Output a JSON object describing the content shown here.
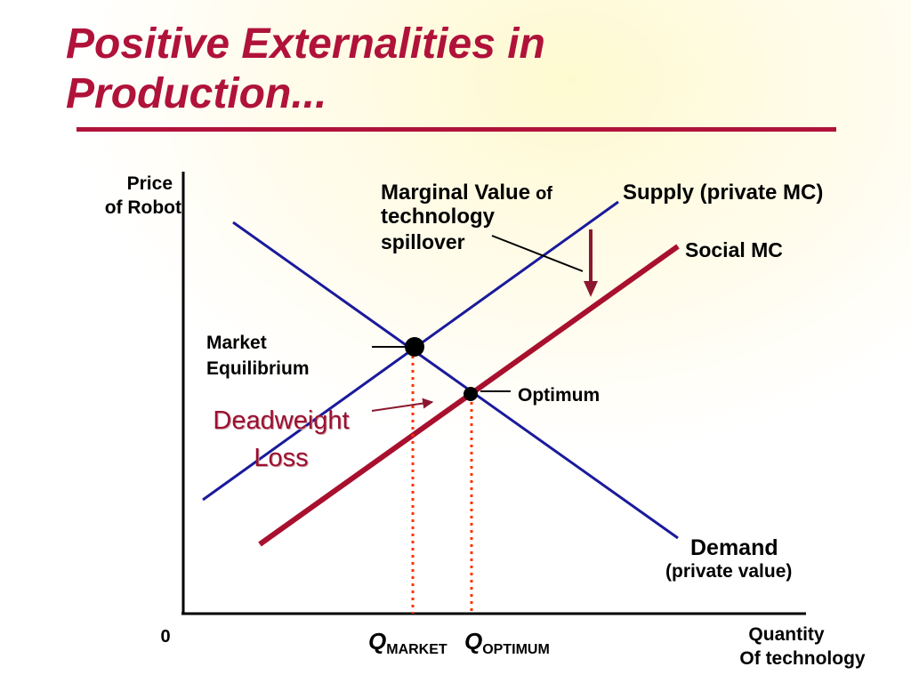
{
  "title": {
    "line1": "Positive Externalities in",
    "line2": "Production..."
  },
  "axes": {
    "ylabel_line1": "Price",
    "ylabel_line2": "of Robot",
    "xlabel_line1": "Quantity",
    "xlabel_line2": "Of technology",
    "origin": "0"
  },
  "labels": {
    "supply": "Supply (private MC)",
    "social_mc": "Social MC",
    "spillover_line1": "Marginal Value",
    "spillover_of": "of",
    "spillover_line2": "technology",
    "spillover_line3": "spillover",
    "market_eq_line1": "Market",
    "market_eq_line2": "Equilibrium",
    "optimum": "Optimum",
    "deadweight_line1": "Deadweight",
    "deadweight_line2": "Loss",
    "demand_line1": "Demand",
    "demand_line2": "(private value)",
    "q_market_letter": "Q",
    "q_market_sub": "MARKET",
    "q_optimum_letter": "Q",
    "q_optimum_sub": "OPTIMUM"
  },
  "colors": {
    "title": "#b0123a",
    "curve_blue": "#1a1a9c",
    "social_mc": "#a8102e",
    "dotted": "#ff3300",
    "arrow": "#8b1830",
    "deadweight_text": "#9b1030"
  }
}
